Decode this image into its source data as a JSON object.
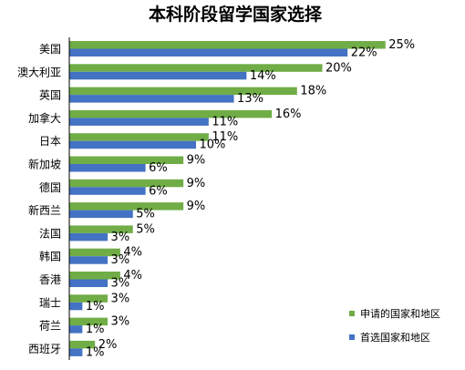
{
  "chart_data": {
    "type": "bar",
    "orientation": "horizontal",
    "title": "本科阶段留学国家选择",
    "categories": [
      "美国",
      "澳大利亚",
      "英国",
      "加拿大",
      "日本",
      "新加坡",
      "德国",
      "新西兰",
      "法国",
      "韩国",
      "香港",
      "瑞士",
      "荷兰",
      "西班牙"
    ],
    "series": [
      {
        "name": "申请的国家和地区",
        "color": "#70ad47",
        "values": [
          25,
          20,
          18,
          16,
          11,
          9,
          9,
          9,
          5,
          4,
          4,
          3,
          3,
          2
        ]
      },
      {
        "name": "首选国家和地区",
        "color": "#4472c4",
        "values": [
          22,
          14,
          13,
          11,
          10,
          6,
          6,
          5,
          3,
          3,
          3,
          1,
          1,
          1
        ]
      }
    ],
    "value_suffix": "%",
    "xlim": [
      0,
      30
    ],
    "grid": false,
    "legend_position": "bottom-right"
  }
}
